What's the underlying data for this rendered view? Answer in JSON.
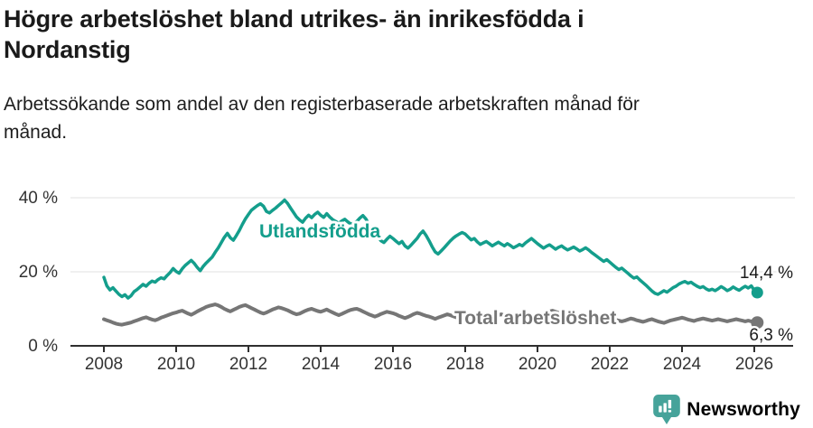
{
  "header": {
    "title_lines": [
      "Högre arbetslöshet bland utrikes- än inrikesfödda i",
      "Nordanstig"
    ],
    "subtitle_lines": [
      "Arbetssökande som andel av den registerbaserade arbetskraften månad för",
      "månad."
    ]
  },
  "chart_data": {
    "type": "line",
    "x_axis": {
      "start_year": 2008,
      "start_month": 1,
      "step": "monthly",
      "tick_years": [
        2008,
        2010,
        2012,
        2014,
        2016,
        2018,
        2020,
        2022,
        2024,
        2026
      ],
      "tick_labels": [
        "2008",
        "2010",
        "2012",
        "2014",
        "2016",
        "2018",
        "2020",
        "2022",
        "2024",
        "2026"
      ]
    },
    "y_axis": {
      "ticks": [
        {
          "value": 0,
          "label": "0 %"
        },
        {
          "value": 20,
          "label": "20 %"
        },
        {
          "value": 40,
          "label": "40 %"
        }
      ],
      "ylim": [
        0,
        44
      ],
      "grid": "horizontal"
    },
    "colors": {
      "utlandsfodda": "#149e8c",
      "total": "#767676",
      "gridline": "#e0e0e0",
      "axis": "#2f2f2f",
      "axis_text": "#333333",
      "end_label_text": "#1a1a1a"
    },
    "series": [
      {
        "id": "utlandsfodda",
        "name": "Utlandsfödda",
        "color": "#149e8c",
        "end_label": "14,4 %",
        "end_value": 14.4,
        "values": [
          18.5,
          16.2,
          15.1,
          15.7,
          14.8,
          13.9,
          13.3,
          13.8,
          12.9,
          13.5,
          14.6,
          15.2,
          15.9,
          16.6,
          16.1,
          16.9,
          17.5,
          17.2,
          17.9,
          18.4,
          18.1,
          19.0,
          19.8,
          20.9,
          20.1,
          19.6,
          20.8,
          21.7,
          22.4,
          23.1,
          22.3,
          21.2,
          20.3,
          21.5,
          22.4,
          23.2,
          24.0,
          25.3,
          26.5,
          27.9,
          29.3,
          30.4,
          29.2,
          28.5,
          29.8,
          31.2,
          32.8,
          34.3,
          35.5,
          36.6,
          37.3,
          37.9,
          38.4,
          37.7,
          36.3,
          35.9,
          36.6,
          37.2,
          37.9,
          38.6,
          39.4,
          38.5,
          37.2,
          36.0,
          34.8,
          34.0,
          33.4,
          34.5,
          35.3,
          34.6,
          35.5,
          36.1,
          35.3,
          34.7,
          35.7,
          34.8,
          34.1,
          33.6,
          33.1,
          33.7,
          34.2,
          33.5,
          32.9,
          33.2,
          33.6,
          34.5,
          35.2,
          34.3,
          32.9,
          31.6,
          30.4,
          29.5,
          28.4,
          27.9,
          28.8,
          29.6,
          29.0,
          28.3,
          27.6,
          28.2,
          27.0,
          26.4,
          27.2,
          28.1,
          29.0,
          30.2,
          31.0,
          29.8,
          28.4,
          26.8,
          25.4,
          24.8,
          25.6,
          26.5,
          27.4,
          28.3,
          29.1,
          29.7,
          30.2,
          30.6,
          30.2,
          29.4,
          28.6,
          29.0,
          28.1,
          27.4,
          27.8,
          28.2,
          27.6,
          27.0,
          27.5,
          28.0,
          27.5,
          27.0,
          27.6,
          27.1,
          26.5,
          26.9,
          27.4,
          27.0,
          27.8,
          28.4,
          29.0,
          28.3,
          27.6,
          27.0,
          26.4,
          26.9,
          27.3,
          26.7,
          26.1,
          26.6,
          27.0,
          26.4,
          25.9,
          26.3,
          26.7,
          26.2,
          25.6,
          26.0,
          26.5,
          25.9,
          25.2,
          24.6,
          24.0,
          23.4,
          22.8,
          23.3,
          22.6,
          21.9,
          21.2,
          20.6,
          21.0,
          20.3,
          19.6,
          18.9,
          18.3,
          18.6,
          17.8,
          17.1,
          16.4,
          15.6,
          14.8,
          14.2,
          13.9,
          14.4,
          14.9,
          14.5,
          15.1,
          15.7,
          16.1,
          16.7,
          17.1,
          17.4,
          16.9,
          17.2,
          16.6,
          16.1,
          15.7,
          16.0,
          15.4,
          15.0,
          15.3,
          14.9,
          15.4,
          16.0,
          15.5,
          14.9,
          15.3,
          15.9,
          15.4,
          15.0,
          15.6,
          16.1,
          15.6,
          16.2,
          15.0,
          14.4
        ]
      },
      {
        "id": "total",
        "name": "Total arbetslöshet",
        "color": "#767676",
        "end_label": "6,3 %",
        "end_value": 6.3,
        "values": [
          7.2,
          6.9,
          6.6,
          6.3,
          6.0,
          5.8,
          5.7,
          5.9,
          6.1,
          6.3,
          6.6,
          6.9,
          7.2,
          7.5,
          7.7,
          7.4,
          7.1,
          6.9,
          7.2,
          7.6,
          7.9,
          8.2,
          8.5,
          8.8,
          9.0,
          9.3,
          9.5,
          9.1,
          8.7,
          8.4,
          8.8,
          9.3,
          9.7,
          10.1,
          10.5,
          10.8,
          11.0,
          11.2,
          10.9,
          10.5,
          10.0,
          9.6,
          9.3,
          9.7,
          10.1,
          10.5,
          10.8,
          11.0,
          10.6,
          10.2,
          9.8,
          9.4,
          9.0,
          8.7,
          9.0,
          9.4,
          9.8,
          10.1,
          10.4,
          10.2,
          9.9,
          9.6,
          9.2,
          8.8,
          8.5,
          8.7,
          9.1,
          9.5,
          9.8,
          10.0,
          9.7,
          9.4,
          9.2,
          9.5,
          9.8,
          9.4,
          9.0,
          8.6,
          8.3,
          8.6,
          9.0,
          9.4,
          9.7,
          9.9,
          10.0,
          9.7,
          9.3,
          8.9,
          8.5,
          8.2,
          7.9,
          8.2,
          8.6,
          8.9,
          9.2,
          9.0,
          8.8,
          8.5,
          8.1,
          7.8,
          7.5,
          7.8,
          8.2,
          8.6,
          8.9,
          8.7,
          8.4,
          8.1,
          7.9,
          7.6,
          7.3,
          7.6,
          7.9,
          8.2,
          8.5,
          8.3,
          8.0,
          7.7,
          7.5,
          7.8,
          8.0,
          8.3,
          8.1,
          7.8,
          7.5,
          7.2,
          7.0,
          7.3,
          7.6,
          7.9,
          8.1,
          8.3,
          8.5,
          8.2,
          7.9,
          7.6,
          7.3,
          7.1,
          7.4,
          7.7,
          8.0,
          8.2,
          8.0,
          7.8,
          8.0,
          8.3,
          8.6,
          9.0,
          9.3,
          9.5,
          9.2,
          8.9,
          8.6,
          8.3,
          8.1,
          8.4,
          8.6,
          8.3,
          8.0,
          7.7,
          7.4,
          7.2,
          7.0,
          7.3,
          7.6,
          7.8,
          7.6,
          7.4,
          7.6,
          7.3,
          7.0,
          6.8,
          6.6,
          6.8,
          7.1,
          7.4,
          7.2,
          6.9,
          6.7,
          6.5,
          6.7,
          7.0,
          7.2,
          6.9,
          6.6,
          6.4,
          6.2,
          6.5,
          6.8,
          7.0,
          7.2,
          7.4,
          7.6,
          7.4,
          7.1,
          6.9,
          6.7,
          7.0,
          7.2,
          7.4,
          7.2,
          7.0,
          6.8,
          7.0,
          7.2,
          7.0,
          6.8,
          6.6,
          6.8,
          7.0,
          7.2,
          7.0,
          6.8,
          6.6,
          6.8,
          6.6,
          6.4,
          6.3
        ]
      }
    ]
  },
  "footer": {
    "brand": "Newsworthy",
    "brand_color": "#46a39a",
    "logo_icon": "bar-chart-speech-bubble-icon"
  }
}
